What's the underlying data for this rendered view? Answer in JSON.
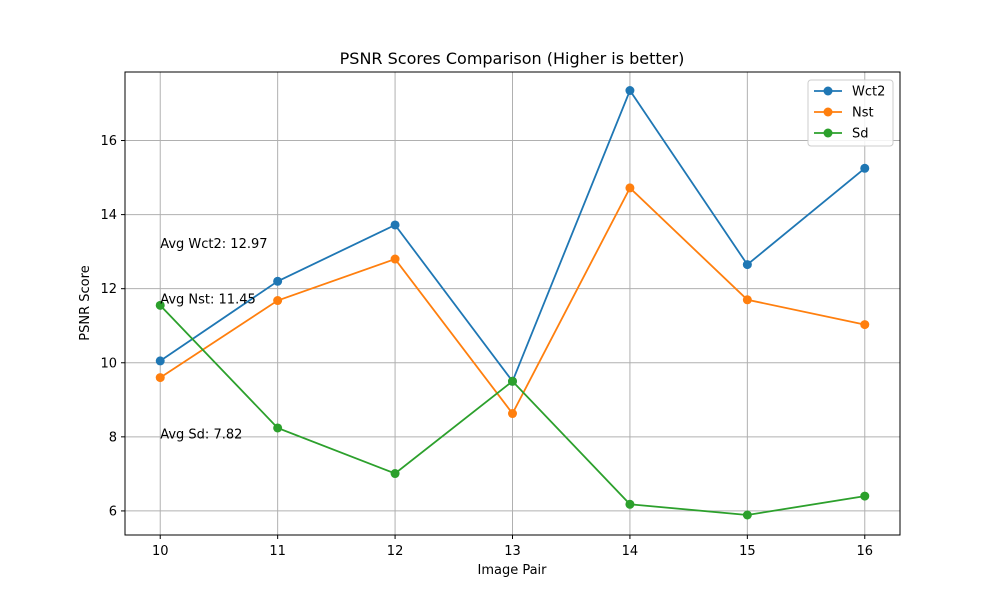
{
  "chart_data": {
    "type": "line",
    "title": "PSNR Scores Comparison (Higher is better)",
    "xlabel": "Image Pair",
    "ylabel": "PSNR Score",
    "x": [
      10,
      11,
      12,
      13,
      14,
      15,
      16
    ],
    "xlim": [
      9.7,
      16.3
    ],
    "ylim": [
      5.35,
      17.85
    ],
    "xticks": [
      10,
      11,
      12,
      13,
      14,
      15,
      16
    ],
    "yticks": [
      6,
      8,
      10,
      12,
      14,
      16
    ],
    "grid": true,
    "legend_position": "top-right",
    "series": [
      {
        "name": "Wct2",
        "color": "#1f77b4",
        "values": [
          10.05,
          12.2,
          13.72,
          9.5,
          17.35,
          12.65,
          15.25
        ]
      },
      {
        "name": "Nst",
        "color": "#ff7f0e",
        "values": [
          9.6,
          11.68,
          12.8,
          8.63,
          14.72,
          11.7,
          11.03
        ]
      },
      {
        "name": "Sd",
        "color": "#2ca02c",
        "values": [
          11.55,
          8.24,
          7.01,
          9.5,
          6.18,
          5.89,
          6.4
        ]
      }
    ],
    "annotations": [
      {
        "text": "Avg Wct2: 12.97",
        "x": 10,
        "y": 13.1
      },
      {
        "text": "Avg Nst: 11.45",
        "x": 10,
        "y": 11.6
      },
      {
        "text": "Avg Sd: 7.82",
        "x": 10,
        "y": 7.95
      }
    ]
  }
}
